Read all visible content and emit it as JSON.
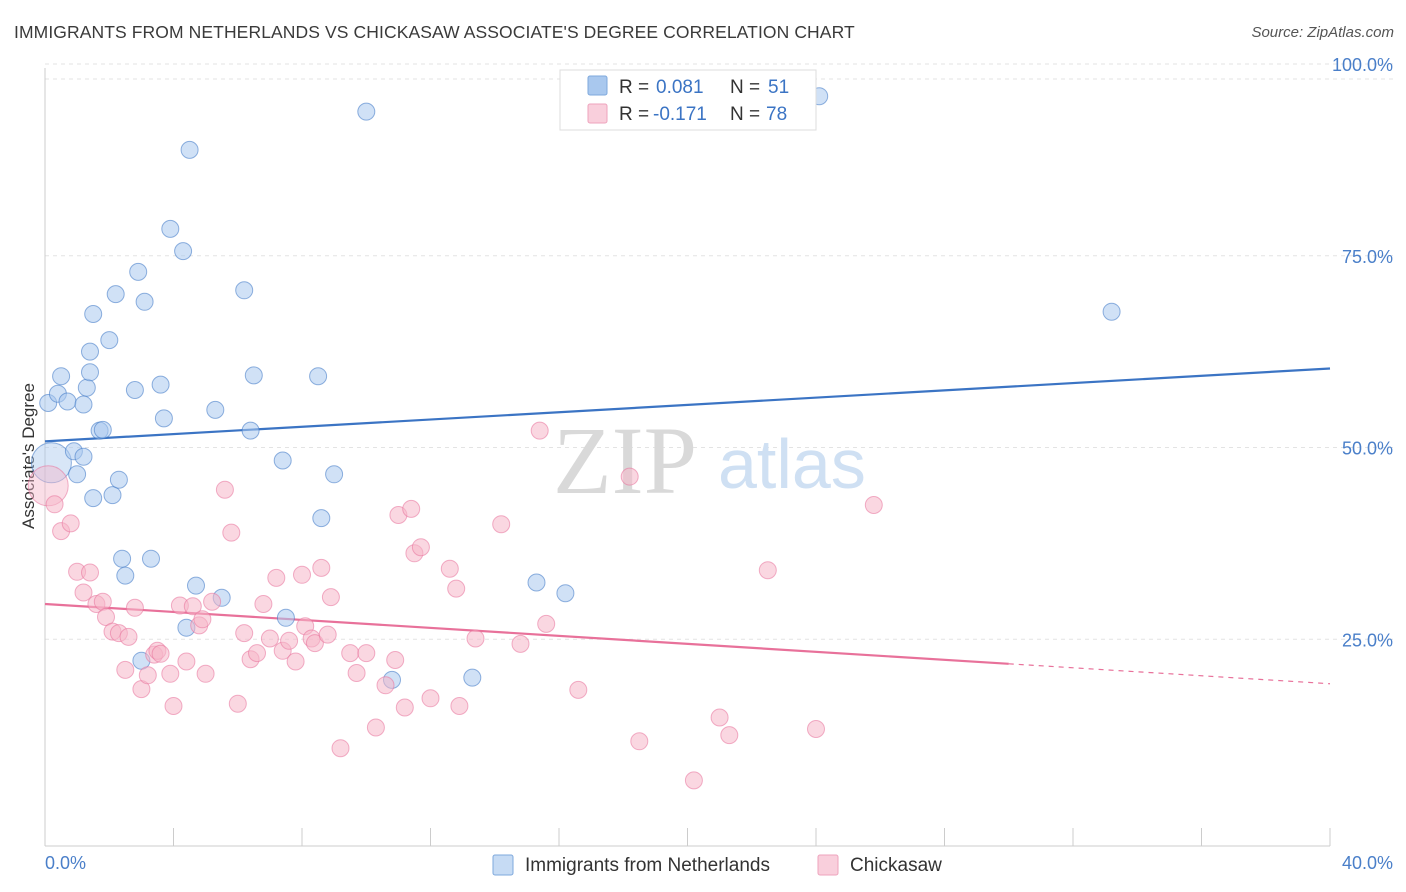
{
  "header": {
    "title": "IMMIGRANTS FROM NETHERLANDS VS CHICKASAW ASSOCIATE'S DEGREE CORRELATION CHART",
    "source": "Source: ZipAtlas.com"
  },
  "watermark": {
    "zip": "ZIP",
    "atlas": "atlas"
  },
  "legend": {
    "rows": [
      {
        "r_label": "R =",
        "r_value": "0.081",
        "n_label": "N =",
        "n_value": "51",
        "color": "#a9c8ee"
      },
      {
        "r_label": "R =",
        "r_value": "-0.171",
        "n_label": "N =",
        "n_value": "78",
        "color": "#f5b6c9"
      }
    ]
  },
  "bottom_legend": [
    {
      "label": "Immigrants from Netherlands",
      "color": "#a9c8ee"
    },
    {
      "label": "Chickasaw",
      "color": "#f5b6c9"
    }
  ],
  "chart_data": {
    "type": "scatter",
    "ylabel": "Associate's Degree",
    "xlim": [
      0,
      40
    ],
    "ylim": [
      0,
      100
    ],
    "x_tick_labels": [
      "0.0%",
      "40.0%"
    ],
    "y_tick_labels": [
      "100.0%",
      "75.0%",
      "50.0%",
      "25.0%"
    ],
    "y_ticks": [
      100,
      75,
      50,
      25
    ],
    "grid": true,
    "colors": {
      "blue": "#3b74c4",
      "blue_fill": "#a9c8ee",
      "pink": "#e8719a",
      "pink_fill": "#f5b6c9"
    },
    "series": [
      {
        "name": "Immigrants from Netherlands",
        "color": "blue",
        "trend": {
          "x": [
            0,
            40
          ],
          "y": [
            50.8,
            60.3
          ]
        },
        "points": [
          [
            0.2,
            48.0
          ],
          [
            0.1,
            55.8
          ],
          [
            0.4,
            57.0
          ],
          [
            0.5,
            59.3
          ],
          [
            0.7,
            56.0
          ],
          [
            0.9,
            49.5
          ],
          [
            1.0,
            46.5
          ],
          [
            1.2,
            48.8
          ],
          [
            1.3,
            57.8
          ],
          [
            1.4,
            59.8
          ],
          [
            1.4,
            62.5
          ],
          [
            1.5,
            67.4
          ],
          [
            1.5,
            43.4
          ],
          [
            1.7,
            52.2
          ],
          [
            1.8,
            52.3
          ],
          [
            2.0,
            64.0
          ],
          [
            2.1,
            43.8
          ],
          [
            2.2,
            70.0
          ],
          [
            2.3,
            45.8
          ],
          [
            2.4,
            35.5
          ],
          [
            2.5,
            33.3
          ],
          [
            2.8,
            57.5
          ],
          [
            2.9,
            72.9
          ],
          [
            3.1,
            69.0
          ],
          [
            3.3,
            35.5
          ],
          [
            3.6,
            58.2
          ],
          [
            3.7,
            53.8
          ],
          [
            3.9,
            78.5
          ],
          [
            4.3,
            75.6
          ],
          [
            4.4,
            26.5
          ],
          [
            4.5,
            88.8
          ],
          [
            4.7,
            32.0
          ],
          [
            5.3,
            54.9
          ],
          [
            5.5,
            30.4
          ],
          [
            6.2,
            70.5
          ],
          [
            6.4,
            52.2
          ],
          [
            6.5,
            59.4
          ],
          [
            7.4,
            48.3
          ],
          [
            7.5,
            27.8
          ],
          [
            8.5,
            59.3
          ],
          [
            8.6,
            40.8
          ],
          [
            9.0,
            46.5
          ],
          [
            10.0,
            93.8
          ],
          [
            10.8,
            19.7
          ],
          [
            13.3,
            20.0
          ],
          [
            15.3,
            32.4
          ],
          [
            16.2,
            31.0
          ],
          [
            24.1,
            95.8
          ],
          [
            33.2,
            67.7
          ],
          [
            1.2,
            55.6
          ],
          [
            3.0,
            22.2
          ]
        ]
      },
      {
        "name": "Chickasaw",
        "color": "pink",
        "trend": {
          "x": [
            0,
            30
          ],
          "y": [
            29.6,
            21.8
          ],
          "dash_to": {
            "x": 40,
            "y": 19.2
          }
        },
        "points": [
          [
            0.1,
            45.0
          ],
          [
            0.3,
            42.6
          ],
          [
            0.5,
            39.1
          ],
          [
            0.8,
            40.1
          ],
          [
            1.0,
            33.8
          ],
          [
            1.2,
            31.1
          ],
          [
            1.4,
            33.7
          ],
          [
            1.6,
            29.6
          ],
          [
            1.8,
            29.9
          ],
          [
            1.9,
            27.9
          ],
          [
            2.1,
            26.0
          ],
          [
            2.3,
            25.8
          ],
          [
            2.5,
            21.0
          ],
          [
            2.6,
            25.3
          ],
          [
            2.8,
            29.1
          ],
          [
            3.0,
            18.5
          ],
          [
            3.2,
            20.3
          ],
          [
            3.4,
            23.0
          ],
          [
            3.5,
            23.5
          ],
          [
            3.9,
            20.5
          ],
          [
            4.0,
            16.3
          ],
          [
            4.2,
            29.4
          ],
          [
            4.4,
            22.1
          ],
          [
            4.6,
            29.3
          ],
          [
            4.8,
            26.8
          ],
          [
            4.9,
            27.6
          ],
          [
            5.0,
            20.5
          ],
          [
            5.2,
            29.9
          ],
          [
            5.6,
            44.5
          ],
          [
            5.8,
            38.9
          ],
          [
            6.0,
            16.6
          ],
          [
            6.2,
            25.8
          ],
          [
            6.4,
            22.4
          ],
          [
            6.6,
            23.2
          ],
          [
            6.8,
            29.6
          ],
          [
            7.0,
            25.1
          ],
          [
            7.2,
            33.0
          ],
          [
            7.4,
            23.5
          ],
          [
            7.6,
            24.8
          ],
          [
            7.8,
            22.1
          ],
          [
            8.0,
            33.4
          ],
          [
            8.1,
            26.7
          ],
          [
            8.3,
            25.1
          ],
          [
            8.4,
            24.5
          ],
          [
            8.6,
            34.3
          ],
          [
            8.8,
            25.6
          ],
          [
            8.9,
            30.5
          ],
          [
            9.2,
            10.8
          ],
          [
            9.5,
            23.2
          ],
          [
            9.7,
            20.6
          ],
          [
            10.0,
            23.2
          ],
          [
            10.3,
            13.5
          ],
          [
            10.6,
            19.0
          ],
          [
            10.9,
            22.3
          ],
          [
            11.0,
            41.2
          ],
          [
            11.2,
            16.1
          ],
          [
            11.4,
            42.0
          ],
          [
            11.5,
            36.2
          ],
          [
            11.7,
            37.0
          ],
          [
            12.0,
            17.3
          ],
          [
            12.6,
            34.2
          ],
          [
            12.8,
            31.6
          ],
          [
            12.9,
            16.3
          ],
          [
            13.4,
            25.1
          ],
          [
            14.2,
            40.0
          ],
          [
            14.8,
            24.4
          ],
          [
            15.4,
            52.2
          ],
          [
            15.6,
            27.0
          ],
          [
            16.6,
            18.4
          ],
          [
            18.2,
            46.2
          ],
          [
            18.5,
            11.7
          ],
          [
            20.2,
            6.6
          ],
          [
            21.0,
            14.8
          ],
          [
            21.3,
            12.5
          ],
          [
            22.5,
            34.0
          ],
          [
            24.0,
            13.3
          ],
          [
            25.8,
            42.5
          ],
          [
            3.6,
            23.1
          ]
        ]
      }
    ]
  }
}
